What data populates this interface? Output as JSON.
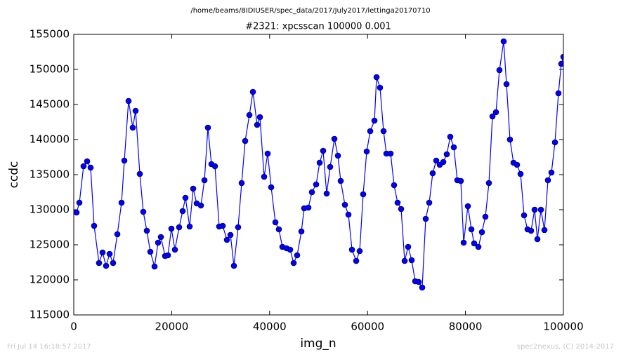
{
  "chart_data": {
    "type": "line",
    "title": "/home/beams/8IDIUSER/spec_data/2017/July2017/lettinga20170710",
    "subtitle": "#2321: xpcsscan 100000 0.001",
    "xlabel": "img_n",
    "ylabel": "ccdc",
    "footer_left": "Fri Jul 14 16:18:57 2017",
    "footer_right": "spec2nexus, (C) 2014-2017",
    "color": "#0000ff",
    "x": [
      574,
      1150,
      2000,
      2730,
      3440,
      4160,
      5160,
      5880,
      6600,
      7320,
      8030,
      8900,
      9760,
      10330,
      11190,
      12050,
      12630,
      13490,
      14200,
      14920,
      15640,
      16500,
      17220,
      17790,
      18650,
      19230,
      19940,
      20660,
      21520,
      22240,
      22810,
      23670,
      24390,
      25110,
      25970,
      26690,
      27400,
      28120,
      28840,
      29700,
      30420,
      31280,
      32000,
      32710,
      33570,
      34290,
      35010,
      35870,
      36590,
      37450,
      38020,
      38880,
      39600,
      40320,
      41180,
      41890,
      42610,
      43470,
      44190,
      44910,
      45620,
      46490,
      47060,
      47920,
      48640,
      49500,
      50220,
      50930,
      51650,
      52370,
      53230,
      53950,
      54520,
      55380,
      56100,
      56820,
      57680,
      58390,
      59110,
      59830,
      60550,
      61410,
      61840,
      62550,
      63270,
      63850,
      64710,
      65420,
      66140,
      66860,
      67580,
      68290,
      69010,
      69730,
      70440,
      71160,
      71880,
      72600,
      73310,
      74030,
      74750,
      75470,
      76180,
      76900,
      77620,
      78340,
      79050,
      79630,
      80490,
      81210,
      81780,
      82640,
      83360,
      84070,
      84790,
      85510,
      86230,
      86940,
      87800,
      88380,
      89090,
      89810,
      90530,
      91250,
      91970,
      92680,
      93400,
      94120,
      94690,
      95410,
      96130,
      96840,
      97560,
      98280,
      98990,
      99570,
      100000
    ],
    "values": [
      129600,
      131000,
      136200,
      136900,
      136000,
      127700,
      122400,
      123900,
      122000,
      123700,
      122400,
      126500,
      131000,
      137000,
      145500,
      141700,
      144100,
      135100,
      129700,
      127000,
      124000,
      121900,
      125300,
      126100,
      123400,
      123500,
      127300,
      124300,
      127500,
      129800,
      131700,
      127600,
      133000,
      130900,
      130600,
      134200,
      141700,
      136500,
      136200,
      127600,
      127700,
      125700,
      126400,
      122000,
      127500,
      133800,
      139800,
      143500,
      146800,
      142100,
      143200,
      134700,
      138000,
      133200,
      128200,
      127200,
      124700,
      124500,
      124300,
      122400,
      123500,
      126900,
      130200,
      130300,
      132500,
      133600,
      136700,
      138400,
      132300,
      136100,
      140100,
      137700,
      134100,
      130700,
      129300,
      124300,
      122700,
      124100,
      132200,
      138300,
      141200,
      142700,
      148900,
      147400,
      141200,
      138000,
      138000,
      133500,
      131000,
      130100,
      122700,
      124700,
      122800,
      119800,
      119700,
      118900,
      128700,
      131000,
      135200,
      137000,
      136400,
      136800,
      137900,
      140400,
      138900,
      134200,
      134100,
      125300,
      130500,
      127200,
      125200,
      124700,
      126800,
      129000,
      133800,
      143300,
      143900,
      149900,
      154000,
      147900,
      140000,
      136700,
      136400,
      135100,
      129200,
      127200,
      127000,
      130000,
      125800,
      130000,
      127100,
      134200,
      135300,
      139600,
      146600,
      150800,
      151800
    ],
    "xlim": [
      0,
      100000
    ],
    "xticks": [
      0,
      20000,
      40000,
      60000,
      80000,
      100000
    ],
    "ylim": [
      115000,
      155000
    ],
    "yticks": [
      115000,
      120000,
      125000,
      130000,
      135000,
      140000,
      145000,
      150000,
      155000
    ],
    "grid": false
  }
}
